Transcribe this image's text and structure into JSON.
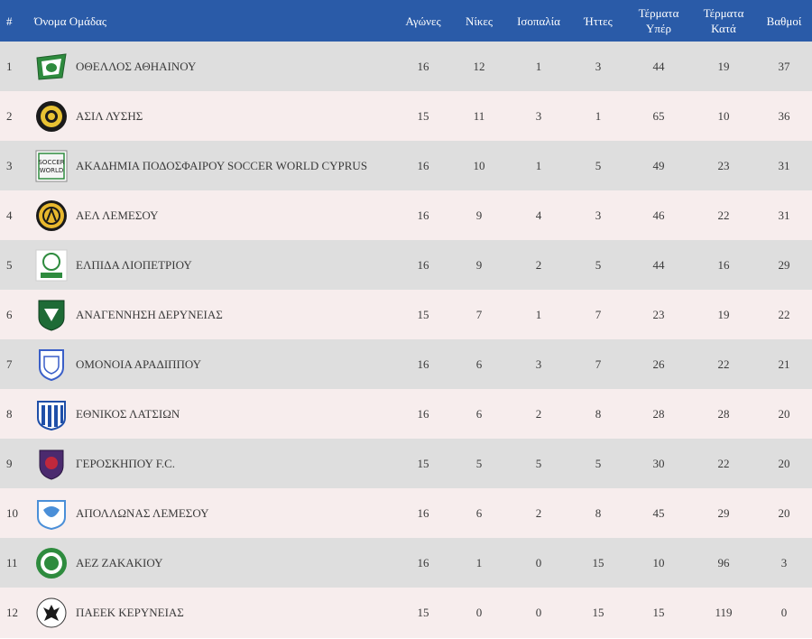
{
  "headers": {
    "num": "#",
    "team": "Όνομα Ομάδας",
    "played": "Αγώνες",
    "wins": "Νίκες",
    "draws": "Ισοπαλία",
    "losses": "Ήττες",
    "gf_line1": "Τέρματα",
    "gf_line2": "Υπέρ",
    "ga_line1": "Τέρματα",
    "ga_line2": "Κατά",
    "points": "Βαθμοί"
  },
  "rows": [
    {
      "pos": "1",
      "team": "ΟΘΕΛΛΟΣ ΑΘΗΑΙΝΟΥ",
      "logo": "othellos-crest-icon",
      "p": "16",
      "w": "12",
      "d": "1",
      "l": "3",
      "gf": "44",
      "ga": "19",
      "pts": "37"
    },
    {
      "pos": "2",
      "team": "ΑΣΙΛ ΛΥΣΗΣ",
      "logo": "asil-crest-icon",
      "p": "15",
      "w": "11",
      "d": "3",
      "l": "1",
      "gf": "65",
      "ga": "10",
      "pts": "36"
    },
    {
      "pos": "3",
      "team": "ΑΚΑΔΗΜΙΑ ΠΟΔΟΣΦΑΙΡΟΥ SOCCER WORLD CYPRUS",
      "logo": "soccer-world-crest-icon",
      "logo_text_1": "SOCCER",
      "logo_text_2": "WORLD",
      "p": "16",
      "w": "10",
      "d": "1",
      "l": "5",
      "gf": "49",
      "ga": "23",
      "pts": "31"
    },
    {
      "pos": "4",
      "team": "ΑΕΛ ΛΕΜΕΣΟΥ",
      "logo": "ael-crest-icon",
      "p": "16",
      "w": "9",
      "d": "4",
      "l": "3",
      "gf": "46",
      "ga": "22",
      "pts": "31"
    },
    {
      "pos": "5",
      "team": "ΕΛΠΙΔΑ ΛΙΟΠΕΤΡΙΟΥ",
      "logo": "elpida-crest-icon",
      "p": "16",
      "w": "9",
      "d": "2",
      "l": "5",
      "gf": "44",
      "ga": "16",
      "pts": "29"
    },
    {
      "pos": "6",
      "team": "ΑΝΑΓΕΝΝΗΣΗ ΔΕΡΥΝΕΙΑΣ",
      "logo": "anagennisi-crest-icon",
      "p": "15",
      "w": "7",
      "d": "1",
      "l": "7",
      "gf": "23",
      "ga": "19",
      "pts": "22"
    },
    {
      "pos": "7",
      "team": "ΟΜΟΝΟΙΑ ΑΡΑΔΙΠΠΟΥ",
      "logo": "omonoia-aradippou-crest-icon",
      "p": "16",
      "w": "6",
      "d": "3",
      "l": "7",
      "gf": "26",
      "ga": "22",
      "pts": "21"
    },
    {
      "pos": "8",
      "team": "ΕΘΝΙΚΟΣ ΛΑΤΣΙΩΝ",
      "logo": "ethnikos-crest-icon",
      "p": "16",
      "w": "6",
      "d": "2",
      "l": "8",
      "gf": "28",
      "ga": "28",
      "pts": "20"
    },
    {
      "pos": "9",
      "team": "ΓΕΡΟΣΚΗΠΟΥ F.C.",
      "logo": "geroskipou-crest-icon",
      "p": "15",
      "w": "5",
      "d": "5",
      "l": "5",
      "gf": "30",
      "ga": "22",
      "pts": "20"
    },
    {
      "pos": "10",
      "team": "ΑΠΟΛΛΩΝΑΣ ΛΕΜΕΣΟΥ",
      "logo": "apollon-crest-icon",
      "p": "16",
      "w": "6",
      "d": "2",
      "l": "8",
      "gf": "45",
      "ga": "29",
      "pts": "20"
    },
    {
      "pos": "11",
      "team": "ΑΕΖ ΖΑΚΑΚΙΟΥ",
      "logo": "aez-crest-icon",
      "p": "16",
      "w": "1",
      "d": "0",
      "l": "15",
      "gf": "10",
      "ga": "96",
      "pts": "3"
    },
    {
      "pos": "12",
      "team": "ΠΑΕΕΚ ΚΕΡΥΝΕΙΑΣ",
      "logo": "paeek-crest-icon",
      "p": "15",
      "w": "0",
      "d": "0",
      "l": "15",
      "gf": "15",
      "ga": "119",
      "pts": "0"
    }
  ],
  "colors": {
    "header_bg": "#2a5ba8",
    "row_odd": "#dedede",
    "row_even": "#f7eded"
  }
}
